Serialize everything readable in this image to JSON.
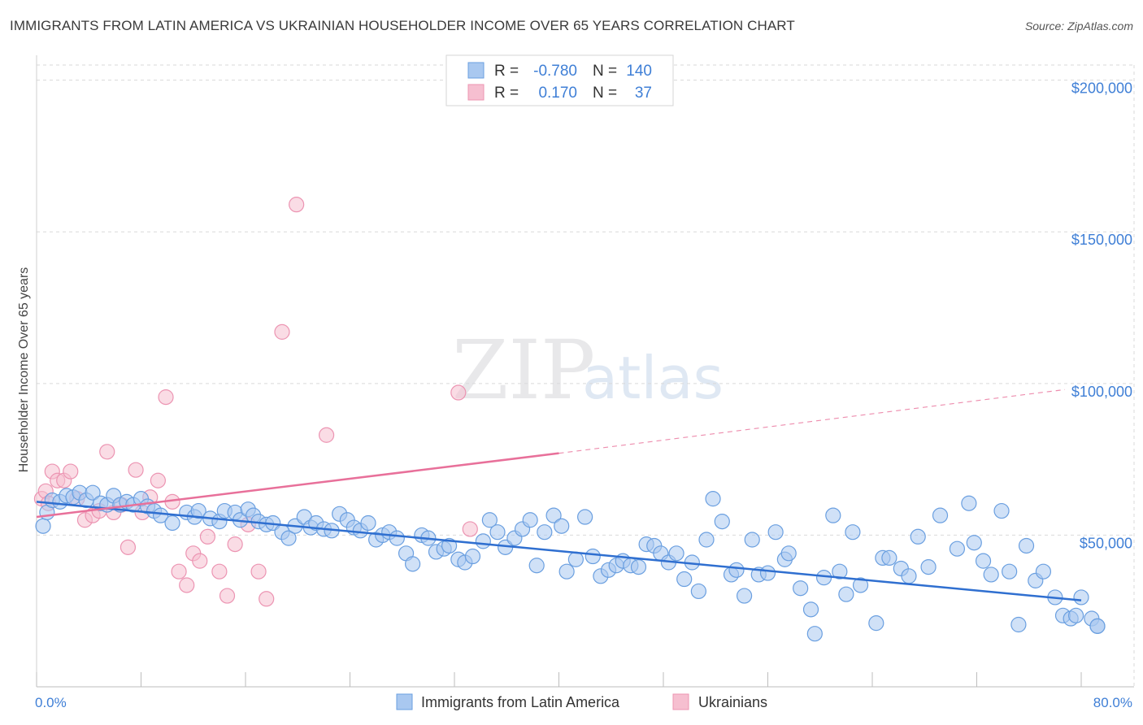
{
  "title": "IMMIGRANTS FROM LATIN AMERICA VS UKRAINIAN HOUSEHOLDER INCOME OVER 65 YEARS CORRELATION CHART",
  "source": "Source: ZipAtlas.com",
  "watermark": {
    "zip": "ZIP",
    "atlas": "atlas"
  },
  "colors": {
    "blue_fill": "#a9c8f0",
    "blue_stroke": "#6a9fe0",
    "blue_line": "#2f6fd0",
    "pink_fill": "#f6bfd0",
    "pink_stroke": "#ec94b2",
    "pink_line": "#e8709a",
    "accent_text": "#3f7fd6",
    "grid": "#d9d9d9"
  },
  "legend": {
    "rows": [
      {
        "r_label": "R = ",
        "r_value": "-0.780",
        "n_label": "N = ",
        "n_value": "140",
        "color": "blue"
      },
      {
        "r_label": "R = ",
        "r_value": "0.170",
        "n_label": "N = ",
        "n_value": "37",
        "color": "pink"
      }
    ]
  },
  "bottom_legend": [
    {
      "label": "Immigrants from Latin America",
      "color": "blue"
    },
    {
      "label": "Ukrainians",
      "color": "pink"
    }
  ],
  "chart_data": {
    "type": "scatter",
    "title": "IMMIGRANTS FROM LATIN AMERICA VS UKRAINIAN HOUSEHOLDER INCOME OVER 65 YEARS CORRELATION CHART",
    "xlabel": "",
    "ylabel": "Householder Income Over 65 years",
    "xlim": [
      0,
      80
    ],
    "ylim": [
      0,
      205000
    ],
    "x_tick_labels": [
      "0.0%",
      "80.0%"
    ],
    "y_ticks": [
      50000,
      100000,
      150000,
      200000
    ],
    "y_tick_labels": [
      "$50,000",
      "$100,000",
      "$150,000",
      "$200,000"
    ],
    "grid": true,
    "legend_position": "top-center",
    "series": [
      {
        "name": "Immigrants from Latin America",
        "color": "blue",
        "trend": {
          "x": [
            0,
            80
          ],
          "y": [
            61000,
            28500
          ],
          "style": "solid"
        },
        "points": [
          [
            0.5,
            53000
          ],
          [
            0.8,
            57500
          ],
          [
            1.2,
            61500
          ],
          [
            1.8,
            61000
          ],
          [
            2.3,
            63000
          ],
          [
            2.8,
            62500
          ],
          [
            3.3,
            64000
          ],
          [
            3.8,
            61500
          ],
          [
            4.3,
            64000
          ],
          [
            4.9,
            60500
          ],
          [
            5.4,
            60000
          ],
          [
            5.9,
            63000
          ],
          [
            6.4,
            60000
          ],
          [
            6.9,
            61000
          ],
          [
            7.4,
            60000
          ],
          [
            8.0,
            62000
          ],
          [
            8.5,
            59500
          ],
          [
            9.0,
            58000
          ],
          [
            9.5,
            56500
          ],
          [
            10.4,
            54000
          ],
          [
            11.5,
            57500
          ],
          [
            12.1,
            56000
          ],
          [
            12.4,
            58000
          ],
          [
            13.3,
            55500
          ],
          [
            14.0,
            54500
          ],
          [
            14.4,
            58000
          ],
          [
            15.2,
            57500
          ],
          [
            15.6,
            55000
          ],
          [
            16.2,
            58500
          ],
          [
            16.6,
            56500
          ],
          [
            17.0,
            54500
          ],
          [
            17.6,
            53500
          ],
          [
            18.1,
            54000
          ],
          [
            18.8,
            51000
          ],
          [
            19.3,
            49000
          ],
          [
            19.8,
            53000
          ],
          [
            20.5,
            56000
          ],
          [
            21.0,
            52500
          ],
          [
            21.4,
            54000
          ],
          [
            22.0,
            52000
          ],
          [
            22.6,
            51500
          ],
          [
            23.2,
            57000
          ],
          [
            23.8,
            55000
          ],
          [
            24.3,
            52500
          ],
          [
            24.8,
            51500
          ],
          [
            25.4,
            54000
          ],
          [
            26.0,
            48500
          ],
          [
            26.5,
            50000
          ],
          [
            27.0,
            51000
          ],
          [
            27.6,
            49000
          ],
          [
            28.3,
            44000
          ],
          [
            28.8,
            40500
          ],
          [
            29.5,
            50000
          ],
          [
            30.0,
            49000
          ],
          [
            30.6,
            44500
          ],
          [
            31.2,
            45500
          ],
          [
            31.6,
            46500
          ],
          [
            32.3,
            42000
          ],
          [
            32.8,
            41000
          ],
          [
            33.4,
            43000
          ],
          [
            34.2,
            48000
          ],
          [
            34.7,
            55000
          ],
          [
            35.3,
            51000
          ],
          [
            35.9,
            46000
          ],
          [
            36.6,
            49000
          ],
          [
            37.2,
            52000
          ],
          [
            37.8,
            55000
          ],
          [
            38.3,
            40000
          ],
          [
            38.9,
            51000
          ],
          [
            39.6,
            56500
          ],
          [
            40.2,
            53000
          ],
          [
            40.6,
            38000
          ],
          [
            41.3,
            42000
          ],
          [
            42.0,
            56000
          ],
          [
            42.6,
            43000
          ],
          [
            43.2,
            36500
          ],
          [
            43.8,
            38500
          ],
          [
            44.4,
            40000
          ],
          [
            44.9,
            41500
          ],
          [
            45.5,
            40000
          ],
          [
            46.1,
            39500
          ],
          [
            46.7,
            47000
          ],
          [
            47.3,
            46500
          ],
          [
            47.8,
            44000
          ],
          [
            48.4,
            41000
          ],
          [
            49.0,
            44000
          ],
          [
            49.6,
            35500
          ],
          [
            50.2,
            41000
          ],
          [
            50.7,
            31500
          ],
          [
            51.3,
            48500
          ],
          [
            51.8,
            62000
          ],
          [
            52.5,
            54500
          ],
          [
            53.2,
            37000
          ],
          [
            53.6,
            38500
          ],
          [
            54.2,
            30000
          ],
          [
            54.8,
            48500
          ],
          [
            55.3,
            37000
          ],
          [
            56.0,
            37500
          ],
          [
            56.6,
            51000
          ],
          [
            57.3,
            42000
          ],
          [
            57.6,
            44000
          ],
          [
            58.5,
            32500
          ],
          [
            59.3,
            25500
          ],
          [
            59.6,
            17500
          ],
          [
            60.3,
            36000
          ],
          [
            61.0,
            56500
          ],
          [
            61.5,
            38000
          ],
          [
            62.0,
            30500
          ],
          [
            62.5,
            51000
          ],
          [
            63.1,
            33500
          ],
          [
            64.3,
            21000
          ],
          [
            64.8,
            42500
          ],
          [
            65.3,
            42500
          ],
          [
            66.2,
            39000
          ],
          [
            66.8,
            36500
          ],
          [
            67.5,
            49500
          ],
          [
            68.3,
            39500
          ],
          [
            69.2,
            56500
          ],
          [
            70.5,
            45500
          ],
          [
            71.4,
            60500
          ],
          [
            71.8,
            47500
          ],
          [
            72.5,
            41500
          ],
          [
            73.1,
            37000
          ],
          [
            73.9,
            58000
          ],
          [
            74.5,
            38000
          ],
          [
            75.2,
            20500
          ],
          [
            75.8,
            46500
          ],
          [
            76.5,
            35000
          ],
          [
            77.1,
            38000
          ],
          [
            78.0,
            29500
          ],
          [
            78.6,
            23500
          ],
          [
            79.2,
            22500
          ],
          [
            79.6,
            23500
          ],
          [
            80.0,
            29500
          ],
          [
            80.8,
            22500
          ],
          [
            81.8,
            20000
          ],
          [
            83.5,
            20000
          ]
        ]
      },
      {
        "name": "Ukrainians",
        "color": "pink",
        "trend": {
          "x": [
            0,
            40
          ],
          "y": [
            56000,
            77000
          ],
          "style": "solid",
          "extended_to": [
            80,
            98000
          ],
          "extended_style": "dashed"
        },
        "points": [
          [
            0.4,
            62000
          ],
          [
            0.7,
            64500
          ],
          [
            1.2,
            71000
          ],
          [
            1.6,
            68000
          ],
          [
            2.1,
            68000
          ],
          [
            2.6,
            71000
          ],
          [
            3.1,
            62000
          ],
          [
            3.7,
            55000
          ],
          [
            4.3,
            56500
          ],
          [
            4.8,
            58000
          ],
          [
            5.4,
            77500
          ],
          [
            5.9,
            57500
          ],
          [
            6.5,
            60000
          ],
          [
            7.0,
            46000
          ],
          [
            7.6,
            71500
          ],
          [
            8.1,
            57500
          ],
          [
            8.7,
            62500
          ],
          [
            9.3,
            68000
          ],
          [
            9.9,
            95500
          ],
          [
            10.4,
            61000
          ],
          [
            10.9,
            38000
          ],
          [
            11.5,
            33500
          ],
          [
            12.0,
            44000
          ],
          [
            12.5,
            41500
          ],
          [
            13.1,
            49500
          ],
          [
            14.0,
            38000
          ],
          [
            14.6,
            30000
          ],
          [
            15.2,
            47000
          ],
          [
            16.2,
            53500
          ],
          [
            17.0,
            38000
          ],
          [
            17.6,
            29000
          ],
          [
            18.8,
            117000
          ],
          [
            19.9,
            159000
          ],
          [
            22.2,
            83000
          ],
          [
            32.3,
            97000
          ],
          [
            33.2,
            52000
          ],
          [
            0.9,
            60500
          ]
        ]
      }
    ]
  }
}
